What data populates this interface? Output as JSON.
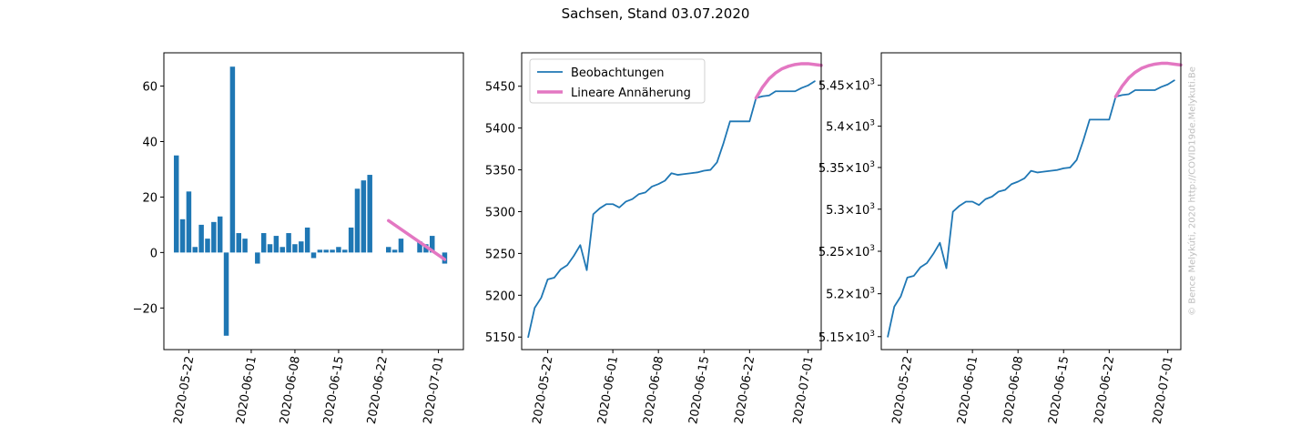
{
  "figure": {
    "title": "Sachsen, Stand 03.07.2020",
    "watermark": "© Bence Melykúti, 2020  http://COVID19de.Melykuti.Be"
  },
  "chart_data": [
    {
      "type": "bar",
      "x_type": "date",
      "x_ticks": [
        "2020-05-22",
        "2020-06-01",
        "2020-06-08",
        "2020-06-15",
        "2020-06-22",
        "2020-07-01"
      ],
      "y_ticks": [
        -20,
        0,
        20,
        40,
        60
      ],
      "xlim": [
        "2020-05-18",
        "2020-07-05"
      ],
      "ylim": [
        -35,
        72
      ],
      "bar_color": "#1f77b4",
      "x": [
        "2020-05-20",
        "2020-05-21",
        "2020-05-22",
        "2020-05-23",
        "2020-05-24",
        "2020-05-25",
        "2020-05-26",
        "2020-05-27",
        "2020-05-28",
        "2020-05-29",
        "2020-05-30",
        "2020-05-31",
        "2020-06-01",
        "2020-06-02",
        "2020-06-03",
        "2020-06-04",
        "2020-06-05",
        "2020-06-06",
        "2020-06-07",
        "2020-06-08",
        "2020-06-09",
        "2020-06-10",
        "2020-06-11",
        "2020-06-12",
        "2020-06-13",
        "2020-06-14",
        "2020-06-15",
        "2020-06-16",
        "2020-06-17",
        "2020-06-18",
        "2020-06-19",
        "2020-06-20",
        "2020-06-23",
        "2020-06-24",
        "2020-06-25",
        "2020-06-26",
        "2020-06-27",
        "2020-06-28",
        "2020-06-29",
        "2020-06-30",
        "2020-07-01",
        "2020-07-02"
      ],
      "values": [
        35,
        12,
        22,
        2,
        10,
        5,
        11,
        13,
        -30,
        67,
        7,
        5,
        0,
        -4,
        7,
        3,
        6,
        2,
        7,
        3,
        4,
        9,
        -2,
        1,
        1,
        1,
        2,
        1,
        9,
        23,
        26,
        28,
        2,
        1,
        5,
        0,
        0,
        4,
        3,
        6,
        0,
        -4
      ],
      "trend": {
        "color": "#e377c2",
        "x": [
          "2020-06-23",
          "2020-07-02"
        ],
        "y": [
          11.5,
          -2.5
        ]
      }
    },
    {
      "type": "line",
      "x_type": "date",
      "x_ticks": [
        "2020-05-22",
        "2020-06-01",
        "2020-06-08",
        "2020-06-15",
        "2020-06-22",
        "2020-07-01"
      ],
      "y_ticks": [
        5150,
        5200,
        5250,
        5300,
        5350,
        5400,
        5450
      ],
      "xlim": [
        "2020-05-18",
        "2020-07-03"
      ],
      "ylim": [
        5135,
        5490
      ],
      "legend_position": "top-left",
      "series": [
        {
          "name": "Beobachtungen",
          "color": "#1f77b4",
          "x": [
            "2020-05-19",
            "2020-05-20",
            "2020-05-21",
            "2020-05-22",
            "2020-05-23",
            "2020-05-24",
            "2020-05-25",
            "2020-05-26",
            "2020-05-27",
            "2020-05-28",
            "2020-05-29",
            "2020-05-30",
            "2020-05-31",
            "2020-06-01",
            "2020-06-02",
            "2020-06-03",
            "2020-06-04",
            "2020-06-05",
            "2020-06-06",
            "2020-06-07",
            "2020-06-08",
            "2020-06-09",
            "2020-06-10",
            "2020-06-11",
            "2020-06-12",
            "2020-06-13",
            "2020-06-14",
            "2020-06-15",
            "2020-06-16",
            "2020-06-17",
            "2020-06-18",
            "2020-06-19",
            "2020-06-22",
            "2020-06-23",
            "2020-06-24",
            "2020-06-25",
            "2020-06-26",
            "2020-06-29",
            "2020-06-30",
            "2020-07-01",
            "2020-07-02"
          ],
          "y": [
            5150,
            5185,
            5197,
            5219,
            5221,
            5231,
            5236,
            5247,
            5260,
            5230,
            5297,
            5304,
            5309,
            5309,
            5305,
            5312,
            5315,
            5321,
            5323,
            5330,
            5333,
            5337,
            5346,
            5344,
            5345,
            5346,
            5347,
            5349,
            5350,
            5359,
            5382,
            5408,
            5408,
            5436,
            5438,
            5439,
            5444,
            5444,
            5448,
            5451,
            5456
          ]
        },
        {
          "name": "Lineare Annäherung",
          "color": "#e377c2",
          "x": [
            "2020-06-23",
            "2020-06-24",
            "2020-06-25",
            "2020-06-26",
            "2020-06-27",
            "2020-06-28",
            "2020-06-29",
            "2020-06-30",
            "2020-07-01",
            "2020-07-02",
            "2020-07-03"
          ],
          "y": [
            5436,
            5449,
            5459,
            5466,
            5471,
            5474,
            5476,
            5477,
            5477,
            5476,
            5475
          ]
        }
      ]
    },
    {
      "type": "line",
      "y_scale": "log",
      "x_type": "date",
      "x_ticks": [
        "2020-05-22",
        "2020-06-01",
        "2020-06-08",
        "2020-06-15",
        "2020-06-22",
        "2020-07-01"
      ],
      "y_ticks": [
        {
          "value": 5150,
          "mantissa": "5.15"
        },
        {
          "value": 5200,
          "mantissa": "5.2"
        },
        {
          "value": 5250,
          "mantissa": "5.25"
        },
        {
          "value": 5300,
          "mantissa": "5.3"
        },
        {
          "value": 5350,
          "mantissa": "5.35"
        },
        {
          "value": 5400,
          "mantissa": "5.4"
        },
        {
          "value": 5450,
          "mantissa": "5.45"
        }
      ],
      "y_tick_suffix": "×10",
      "y_tick_exponent": "3",
      "xlim": [
        "2020-05-18",
        "2020-07-03"
      ],
      "ylim": [
        5135,
        5490
      ],
      "series": [
        {
          "color": "#1f77b4",
          "x": [
            "2020-05-19",
            "2020-05-20",
            "2020-05-21",
            "2020-05-22",
            "2020-05-23",
            "2020-05-24",
            "2020-05-25",
            "2020-05-26",
            "2020-05-27",
            "2020-05-28",
            "2020-05-29",
            "2020-05-30",
            "2020-05-31",
            "2020-06-01",
            "2020-06-02",
            "2020-06-03",
            "2020-06-04",
            "2020-06-05",
            "2020-06-06",
            "2020-06-07",
            "2020-06-08",
            "2020-06-09",
            "2020-06-10",
            "2020-06-11",
            "2020-06-12",
            "2020-06-13",
            "2020-06-14",
            "2020-06-15",
            "2020-06-16",
            "2020-06-17",
            "2020-06-18",
            "2020-06-19",
            "2020-06-22",
            "2020-06-23",
            "2020-06-24",
            "2020-06-25",
            "2020-06-26",
            "2020-06-29",
            "2020-06-30",
            "2020-07-01",
            "2020-07-02"
          ],
          "y": [
            5150,
            5185,
            5197,
            5219,
            5221,
            5231,
            5236,
            5247,
            5260,
            5230,
            5297,
            5304,
            5309,
            5309,
            5305,
            5312,
            5315,
            5321,
            5323,
            5330,
            5333,
            5337,
            5346,
            5344,
            5345,
            5346,
            5347,
            5349,
            5350,
            5359,
            5382,
            5408,
            5408,
            5436,
            5438,
            5439,
            5444,
            5444,
            5448,
            5451,
            5456
          ]
        },
        {
          "color": "#e377c2",
          "x": [
            "2020-06-23",
            "2020-06-24",
            "2020-06-25",
            "2020-06-26",
            "2020-06-27",
            "2020-06-28",
            "2020-06-29",
            "2020-06-30",
            "2020-07-01",
            "2020-07-02",
            "2020-07-03"
          ],
          "y": [
            5436,
            5449,
            5459,
            5466,
            5471,
            5474,
            5476,
            5477,
            5477,
            5476,
            5475
          ]
        }
      ]
    }
  ]
}
